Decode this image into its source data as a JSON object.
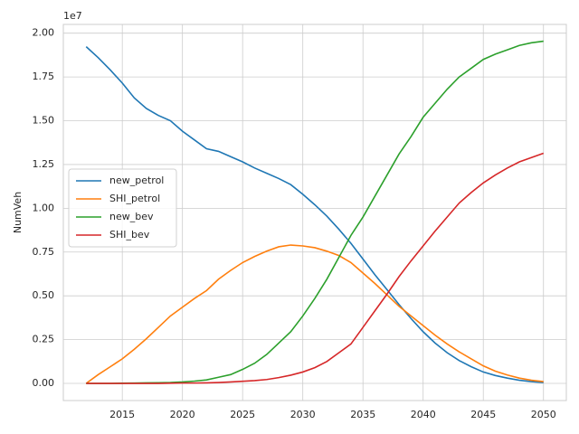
{
  "chart_data": {
    "type": "line",
    "y_label": "NumVeh",
    "y_offset_text": "1e7",
    "x": [
      2012,
      2013,
      2014,
      2015,
      2016,
      2017,
      2018,
      2019,
      2020,
      2021,
      2022,
      2023,
      2024,
      2025,
      2026,
      2027,
      2028,
      2029,
      2030,
      2031,
      2032,
      2033,
      2034,
      2035,
      2036,
      2037,
      2038,
      2039,
      2040,
      2041,
      2042,
      2043,
      2044,
      2045,
      2046,
      2047,
      2048,
      2049,
      2050
    ],
    "xlim": [
      2010.1,
      2051.9
    ],
    "xticks": [
      2015,
      2020,
      2025,
      2030,
      2035,
      2040,
      2045,
      2050
    ],
    "ylim": [
      -980000,
      20500000
    ],
    "yticks": [
      {
        "value": 0,
        "label": "0.00"
      },
      {
        "value": 2500000,
        "label": "0.25"
      },
      {
        "value": 5000000,
        "label": "0.50"
      },
      {
        "value": 7500000,
        "label": "0.75"
      },
      {
        "value": 10000000,
        "label": "1.00"
      },
      {
        "value": 12500000,
        "label": "1.25"
      },
      {
        "value": 15000000,
        "label": "1.50"
      },
      {
        "value": 17500000,
        "label": "1.75"
      },
      {
        "value": 20000000,
        "label": "2.00"
      }
    ],
    "grid": true,
    "legend_position": "center-left",
    "series": [
      {
        "name": "new_petrol",
        "color": "#1f77b4",
        "values": [
          19230000,
          18600000,
          17900000,
          17150000,
          16300000,
          15700000,
          15300000,
          15000000,
          14400000,
          13900000,
          13400000,
          13250000,
          12950000,
          12650000,
          12300000,
          12000000,
          11700000,
          11350000,
          10800000,
          10200000,
          9550000,
          8800000,
          8000000,
          7100000,
          6200000,
          5350000,
          4500000,
          3700000,
          2950000,
          2300000,
          1750000,
          1300000,
          950000,
          650000,
          450000,
          300000,
          180000,
          100000,
          50000
        ]
      },
      {
        "name": "SHI_petrol",
        "color": "#ff7f0e",
        "values": [
          0,
          500000,
          950000,
          1400000,
          1950000,
          2550000,
          3200000,
          3850000,
          4350000,
          4850000,
          5300000,
          5950000,
          6450000,
          6900000,
          7250000,
          7550000,
          7800000,
          7900000,
          7850000,
          7750000,
          7550000,
          7300000,
          6900000,
          6300000,
          5700000,
          5050000,
          4400000,
          3850000,
          3300000,
          2750000,
          2250000,
          1800000,
          1400000,
          1000000,
          700000,
          480000,
          300000,
          180000,
          100000
        ]
      },
      {
        "name": "new_bev",
        "color": "#2ca02c",
        "values": [
          0,
          0,
          0,
          10000,
          20000,
          30000,
          40000,
          50000,
          80000,
          130000,
          200000,
          350000,
          500000,
          800000,
          1150000,
          1650000,
          2300000,
          2950000,
          3850000,
          4850000,
          5950000,
          7200000,
          8450000,
          9500000,
          10700000,
          11900000,
          13100000,
          14100000,
          15200000,
          16000000,
          16800000,
          17500000,
          18000000,
          18500000,
          18800000,
          19050000,
          19300000,
          19450000,
          19540000
        ]
      },
      {
        "name": "SHI_bev",
        "color": "#d62728",
        "values": [
          0,
          0,
          0,
          0,
          0,
          0,
          0,
          10000,
          20000,
          20000,
          30000,
          50000,
          80000,
          120000,
          160000,
          220000,
          330000,
          470000,
          650000,
          900000,
          1250000,
          1750000,
          2250000,
          3200000,
          4150000,
          5100000,
          6100000,
          7000000,
          7850000,
          8700000,
          9500000,
          10300000,
          10900000,
          11450000,
          11900000,
          12300000,
          12650000,
          12900000,
          13140000
        ]
      }
    ]
  }
}
